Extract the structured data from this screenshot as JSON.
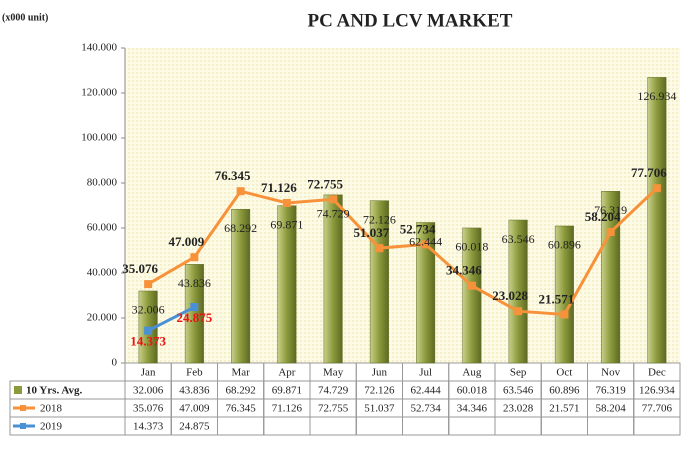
{
  "chart_data": {
    "type": "bar_line",
    "title": "PC AND LCV MARKET",
    "y_label": "(x000 unit)",
    "categories": [
      "Jan",
      "Feb",
      "Mar",
      "Apr",
      "May",
      "Jun",
      "Jul",
      "Aug",
      "Sep",
      "Oct",
      "Nov",
      "Dec"
    ],
    "series": [
      {
        "name": "10 Yrs. Avg.",
        "type": "bar",
        "color": "#8c9a3c",
        "values": [
          32.006,
          43.836,
          68.292,
          69.871,
          74.729,
          72.126,
          62.444,
          60.018,
          63.546,
          60.896,
          76.319,
          126.934
        ]
      },
      {
        "name": "2018",
        "type": "line",
        "color": "#f7923a",
        "values": [
          35.076,
          47.009,
          76.345,
          71.126,
          72.755,
          51.037,
          52.734,
          34.346,
          23.028,
          21.571,
          58.204,
          77.706
        ]
      },
      {
        "name": "2019",
        "type": "line",
        "color": "#4a90d6",
        "label_color": "#ee1111",
        "values": [
          14.373,
          24.875,
          null,
          null,
          null,
          null,
          null,
          null,
          null,
          null,
          null,
          null
        ]
      }
    ],
    "ylim": [
      0,
      140
    ],
    "yticks": [
      0,
      {
        "value": 20,
        "label": "20.000"
      },
      {
        "value": 40,
        "label": "40.000"
      },
      {
        "value": 60,
        "label": "60.000"
      },
      {
        "value": 80,
        "label": "80.000"
      },
      {
        "value": 100,
        "label": "100.000"
      },
      {
        "value": 120,
        "label": "120.000"
      },
      {
        "value": 140,
        "label": "140.000"
      }
    ],
    "grid": false
  }
}
